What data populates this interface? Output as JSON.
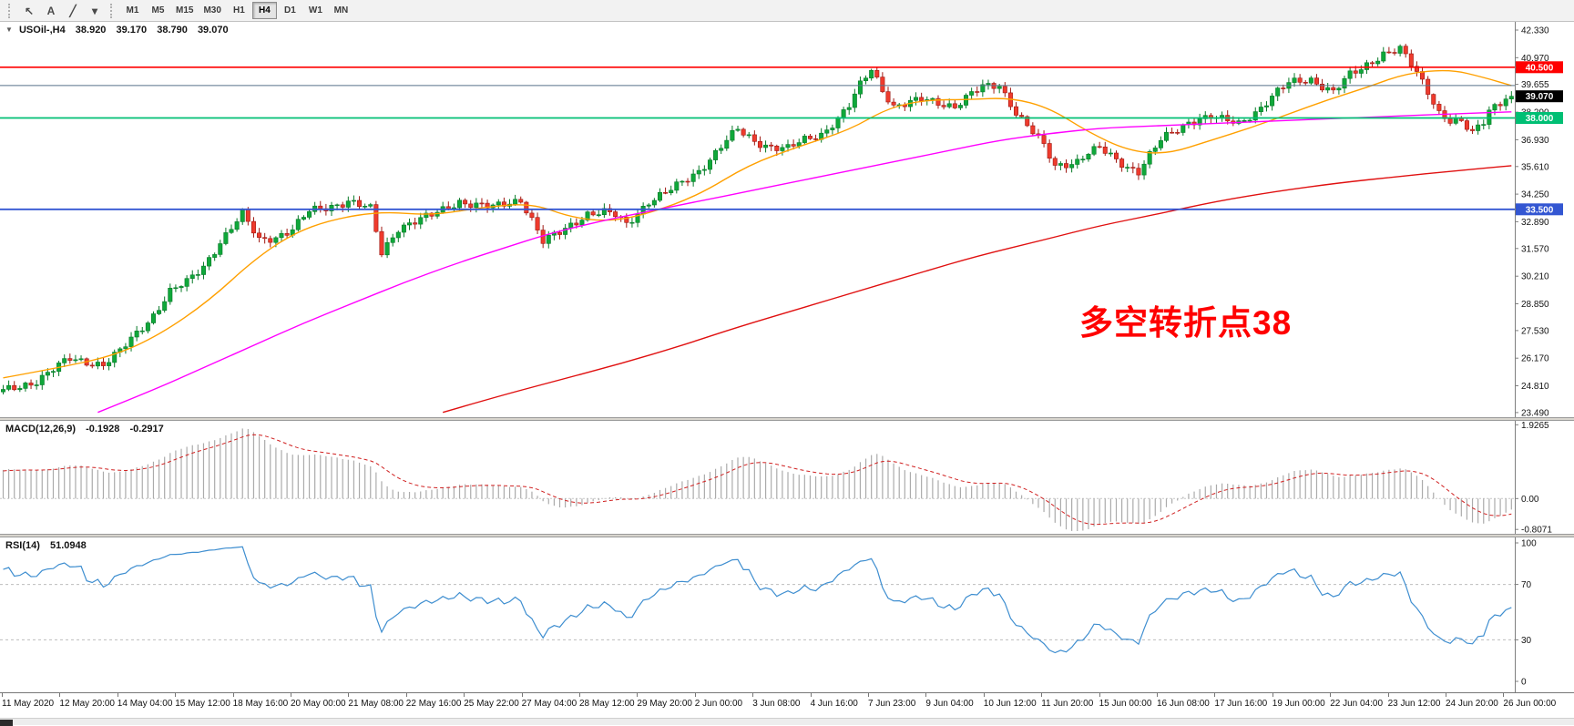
{
  "toolbar": {
    "tools": [
      {
        "name": "cursor-tool",
        "glyph": "↖"
      },
      {
        "name": "text-tool",
        "glyph": "A"
      },
      {
        "name": "trendline-tool",
        "glyph": "╱"
      },
      {
        "name": "shapes-dropdown",
        "glyph": "▾"
      }
    ],
    "timeframes": [
      {
        "label": "M1",
        "active": false
      },
      {
        "label": "M5",
        "active": false
      },
      {
        "label": "M15",
        "active": false
      },
      {
        "label": "M30",
        "active": false
      },
      {
        "label": "H1",
        "active": false
      },
      {
        "label": "H4",
        "active": true
      },
      {
        "label": "D1",
        "active": false
      },
      {
        "label": "W1",
        "active": false
      },
      {
        "label": "MN",
        "active": false
      }
    ]
  },
  "chart_data": {
    "type": "candlestick",
    "symbol": "USOil-",
    "timeframe": "H4",
    "title": {
      "collapse": "▼",
      "symbol": "USOil-,H4",
      "open": "38.920",
      "high": "39.170",
      "low": "38.790",
      "close": "39.070"
    },
    "annotation": {
      "text": "多空转折点38",
      "color": "#ff0000"
    },
    "y_range": [
      23.27,
      42.73
    ],
    "price_axis": [
      "42.330",
      "40.970",
      "39.655",
      "38.290",
      "36.930",
      "35.610",
      "34.250",
      "32.890",
      "31.570",
      "30.210",
      "28.850",
      "27.530",
      "26.170",
      "24.810",
      "23.490"
    ],
    "levels": [
      {
        "name": "resistance-line",
        "price": 40.5,
        "color": "#ff0000",
        "label": "40.500",
        "badge": true,
        "width": 1.6
      },
      {
        "name": "minor-line",
        "price": 39.6,
        "color": "#57708a",
        "label": "",
        "badge": false,
        "width": 1
      },
      {
        "name": "support-line-38",
        "price": 38.0,
        "color": "#00bf74",
        "label": "38.000",
        "badge": true,
        "width": 1.8
      },
      {
        "name": "support-line-335",
        "price": 33.5,
        "color": "#3356d2",
        "label": "33.500",
        "badge": true,
        "width": 1.8
      }
    ],
    "bid": {
      "price": 39.07,
      "label": "39.070",
      "badge_bg": "#000000"
    },
    "style": {
      "up_fill": "#0fa83a",
      "up_stroke": "#077a28",
      "down_fill": "#ef3b2d",
      "down_stroke": "#9f1812",
      "ma_fast_color": "#ffa000",
      "ma_mid_color": "#ff00ff",
      "ma_slow_color": "#e01010",
      "macd_hist": "#ababab",
      "macd_signal": "#d02020",
      "rsi_line": "#3e8ed0"
    },
    "candles": {
      "count": 272,
      "path": [
        [
          0,
          24.55
        ],
        [
          3,
          24.8
        ],
        [
          6,
          25.05
        ],
        [
          9,
          25.6
        ],
        [
          12,
          26.15
        ],
        [
          15,
          26.0
        ],
        [
          18,
          25.85
        ],
        [
          21,
          26.5
        ],
        [
          24,
          27.4
        ],
        [
          27,
          28.3
        ],
        [
          30,
          29.45
        ],
        [
          33,
          29.9
        ],
        [
          36,
          30.7
        ],
        [
          39,
          31.9
        ],
        [
          43,
          33.25
        ],
        [
          46,
          32.0
        ],
        [
          49,
          32.15
        ],
        [
          52,
          32.5
        ],
        [
          55,
          33.4
        ],
        [
          58,
          33.6
        ],
        [
          62,
          33.9
        ],
        [
          66,
          33.5
        ],
        [
          68,
          31.35
        ],
        [
          71,
          32.6
        ],
        [
          74,
          32.9
        ],
        [
          77,
          33.2
        ],
        [
          82,
          33.9
        ],
        [
          85,
          33.7
        ],
        [
          88,
          33.6
        ],
        [
          93,
          34.0
        ],
        [
          95,
          33.0
        ],
        [
          97,
          31.9
        ],
        [
          100,
          32.35
        ],
        [
          105,
          33.3
        ],
        [
          108,
          33.35
        ],
        [
          110,
          33.2
        ],
        [
          112,
          32.75
        ],
        [
          116,
          33.9
        ],
        [
          119,
          34.3
        ],
        [
          122,
          34.8
        ],
        [
          125,
          35.4
        ],
        [
          127,
          36.0
        ],
        [
          130,
          36.9
        ],
        [
          132,
          37.4
        ],
        [
          135,
          36.85
        ],
        [
          138,
          36.6
        ],
        [
          141,
          36.5
        ],
        [
          144,
          36.9
        ],
        [
          147,
          37.2
        ],
        [
          150,
          38.0
        ],
        [
          152,
          38.6
        ],
        [
          154,
          39.6
        ],
        [
          156,
          40.4
        ],
        [
          158,
          39.4
        ],
        [
          160,
          38.6
        ],
        [
          163,
          38.75
        ],
        [
          165,
          38.9
        ],
        [
          168,
          38.75
        ],
        [
          171,
          38.6
        ],
        [
          174,
          39.2
        ],
        [
          176,
          39.5
        ],
        [
          179,
          39.6
        ],
        [
          182,
          38.3
        ],
        [
          185,
          37.3
        ],
        [
          187,
          36.6
        ],
        [
          189,
          35.6
        ],
        [
          191,
          35.75
        ],
        [
          193,
          35.9
        ],
        [
          195,
          36.3
        ],
        [
          197,
          36.5
        ],
        [
          200,
          35.9
        ],
        [
          202,
          35.6
        ],
        [
          204,
          35.4
        ],
        [
          206,
          36.2
        ],
        [
          208,
          36.9
        ],
        [
          211,
          37.4
        ],
        [
          213,
          37.8
        ],
        [
          215,
          38.0
        ],
        [
          217,
          38.1
        ],
        [
          219,
          37.9
        ],
        [
          222,
          37.7
        ],
        [
          225,
          38.3
        ],
        [
          227,
          38.8
        ],
        [
          229,
          39.3
        ],
        [
          231,
          39.7
        ],
        [
          233,
          39.8
        ],
        [
          235,
          39.9
        ],
        [
          237,
          39.6
        ],
        [
          239,
          39.3
        ],
        [
          242,
          40.1
        ],
        [
          244,
          40.4
        ],
        [
          246,
          40.8
        ],
        [
          248,
          41.2
        ],
        [
          251,
          41.4
        ],
        [
          254,
          40.2
        ],
        [
          256,
          39.3
        ],
        [
          258,
          38.3
        ],
        [
          260,
          37.9
        ],
        [
          262,
          37.8
        ],
        [
          264,
          37.2
        ],
        [
          266,
          37.8
        ],
        [
          267,
          38.4
        ],
        [
          269,
          38.8
        ],
        [
          271,
          39.07
        ]
      ]
    },
    "ma": [
      {
        "name": "ma-fast",
        "color": "#ffa000",
        "points": [
          [
            0,
            25.2
          ],
          [
            10,
            25.7
          ],
          [
            20,
            26.3
          ],
          [
            28,
            27.3
          ],
          [
            37,
            29.0
          ],
          [
            45,
            31.0
          ],
          [
            52,
            32.3
          ],
          [
            59,
            33.0
          ],
          [
            68,
            33.4
          ],
          [
            77,
            33.2
          ],
          [
            86,
            33.6
          ],
          [
            95,
            33.8
          ],
          [
            102,
            33.1
          ],
          [
            109,
            32.9
          ],
          [
            116,
            33.3
          ],
          [
            125,
            34.2
          ],
          [
            134,
            35.7
          ],
          [
            143,
            36.6
          ],
          [
            152,
            37.4
          ],
          [
            159,
            38.5
          ],
          [
            166,
            38.9
          ],
          [
            173,
            38.9
          ],
          [
            181,
            39.0
          ],
          [
            188,
            38.5
          ],
          [
            195,
            37.3
          ],
          [
            202,
            36.4
          ],
          [
            209,
            36.2
          ],
          [
            217,
            36.9
          ],
          [
            224,
            37.5
          ],
          [
            231,
            38.2
          ],
          [
            238,
            38.9
          ],
          [
            245,
            39.5
          ],
          [
            252,
            40.2
          ],
          [
            260,
            40.4
          ],
          [
            266,
            40.0
          ],
          [
            271,
            39.6
          ]
        ]
      },
      {
        "name": "ma-mid",
        "color": "#ff00ff",
        "points": [
          [
            17,
            23.5
          ],
          [
            27,
            24.6
          ],
          [
            36,
            25.7
          ],
          [
            45,
            26.8
          ],
          [
            54,
            27.9
          ],
          [
            63,
            28.9
          ],
          [
            72,
            29.9
          ],
          [
            81,
            30.8
          ],
          [
            90,
            31.6
          ],
          [
            98,
            32.3
          ],
          [
            107,
            32.9
          ],
          [
            116,
            33.4
          ],
          [
            125,
            33.9
          ],
          [
            134,
            34.4
          ],
          [
            143,
            34.9
          ],
          [
            152,
            35.4
          ],
          [
            161,
            35.9
          ],
          [
            170,
            36.4
          ],
          [
            179,
            36.9
          ],
          [
            187,
            37.2
          ],
          [
            197,
            37.5
          ],
          [
            206,
            37.6
          ],
          [
            215,
            37.7
          ],
          [
            224,
            37.8
          ],
          [
            233,
            37.9
          ],
          [
            242,
            38.0
          ],
          [
            251,
            38.1
          ],
          [
            260,
            38.2
          ],
          [
            271,
            38.3
          ]
        ]
      },
      {
        "name": "ma-slow",
        "color": "#e01010",
        "points": [
          [
            79,
            23.5
          ],
          [
            89,
            24.3
          ],
          [
            100,
            25.1
          ],
          [
            111,
            25.9
          ],
          [
            122,
            26.8
          ],
          [
            132,
            27.7
          ],
          [
            143,
            28.6
          ],
          [
            154,
            29.5
          ],
          [
            165,
            30.4
          ],
          [
            175,
            31.2
          ],
          [
            187,
            32.0
          ],
          [
            197,
            32.7
          ],
          [
            208,
            33.3
          ],
          [
            218,
            33.9
          ],
          [
            229,
            34.4
          ],
          [
            240,
            34.8
          ],
          [
            250,
            35.1
          ],
          [
            261,
            35.4
          ],
          [
            271,
            35.65
          ]
        ]
      }
    ],
    "x_labels": [
      "11 May 2020",
      "12 May 20:00",
      "14 May 04:00",
      "15 May 12:00",
      "18 May 16:00",
      "20 May 00:00",
      "21 May 08:00",
      "22 May 16:00",
      "25 May 22:00",
      "27 May 04:00",
      "28 May 12:00",
      "29 May 20:00",
      "2 Jun 00:00",
      "3 Jun 08:00",
      "4 Jun 16:00",
      "7 Jun 23:00",
      "9 Jun 04:00",
      "10 Jun 12:00",
      "11 Jun 20:00",
      "15 Jun 00:00",
      "16 Jun 08:00",
      "17 Jun 16:00",
      "19 Jun 00:00",
      "22 Jun 04:00",
      "23 Jun 12:00",
      "24 Jun 20:00",
      "26 Jun 00:00"
    ],
    "macd": {
      "title": "MACD(12,26,9)",
      "main_value": "-0.1928",
      "signal_value": "-0.2917",
      "scale_labels": [
        "1.9265",
        "0.00",
        "-0.8071"
      ]
    },
    "rsi": {
      "title": "RSI(14)",
      "value": "51.0948",
      "scale_labels": [
        "100",
        "70",
        "30",
        "0"
      ],
      "levels": [
        70,
        30
      ]
    }
  }
}
